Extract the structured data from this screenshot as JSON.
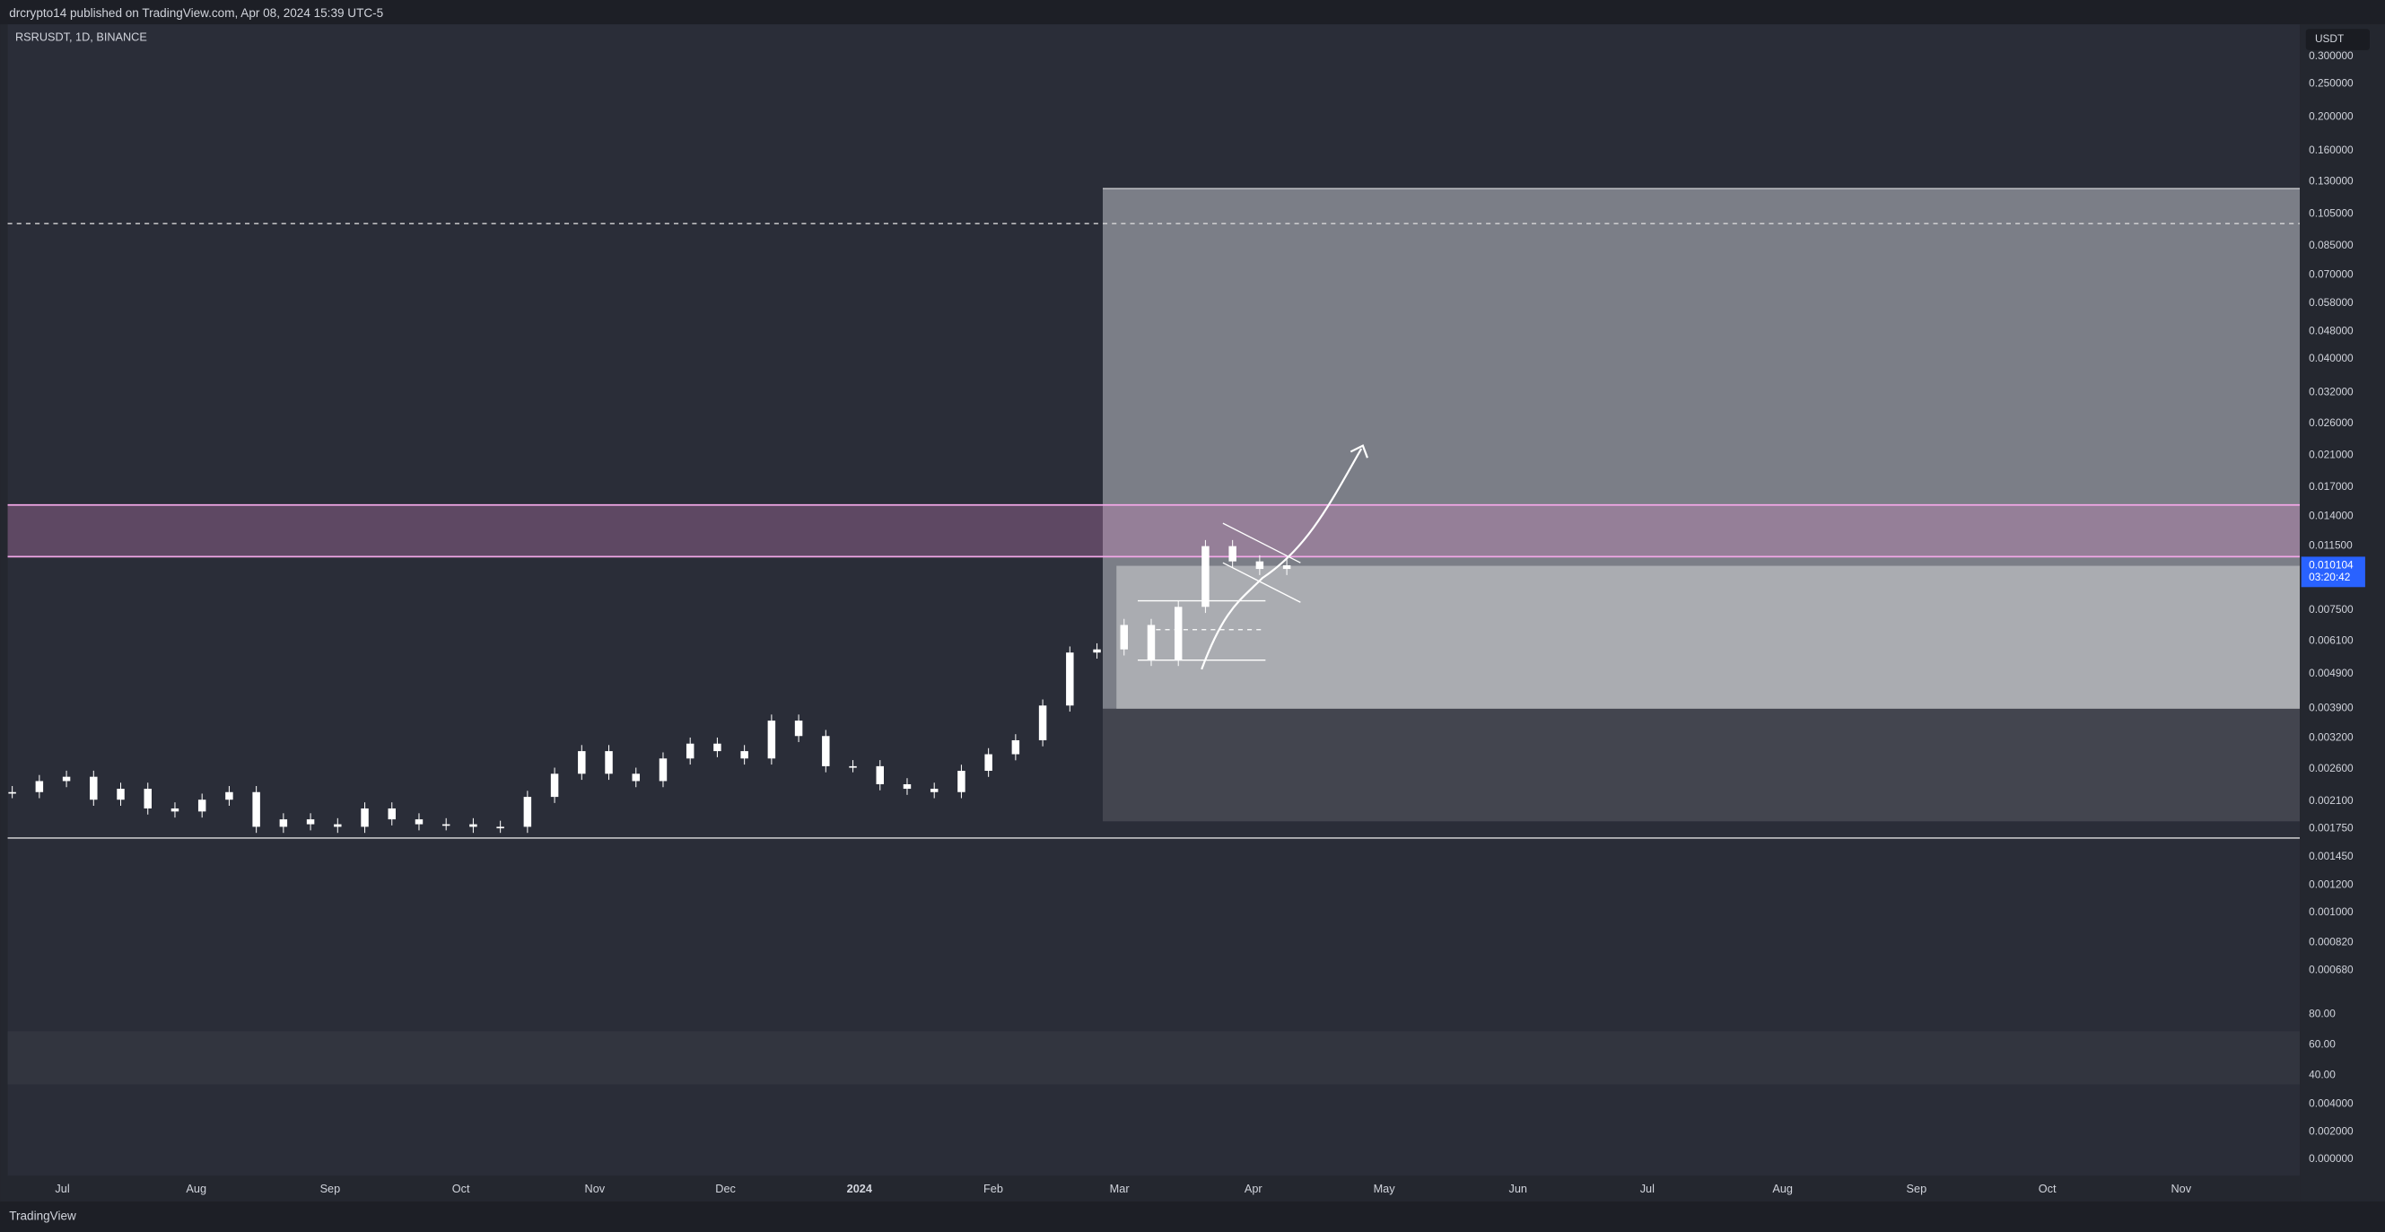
{
  "header": {
    "text": "drcrypto14 published on TradingView.com, Apr 08, 2024 15:39 UTC-5"
  },
  "chart": {
    "symbol": "RSRUSDT, 1D, BINANCE",
    "currency": "USDT",
    "price_scale": {
      "labels": [
        "0.300000",
        "0.250000",
        "0.200000",
        "0.160000",
        "0.130000",
        "0.105000",
        "0.085000",
        "0.070000",
        "0.058000",
        "0.048000",
        "0.040000",
        "0.032000",
        "0.026000",
        "0.021000",
        "0.017000",
        "0.014000",
        "0.011500",
        "0.007500",
        "0.006100",
        "0.004900",
        "0.003900",
        "0.003200",
        "0.002600",
        "0.002100",
        "0.001750",
        "0.001450",
        "0.001200",
        "0.001000",
        "0.000820",
        "0.000680"
      ]
    },
    "last_price": {
      "price": "0.010104",
      "countdown": "03:20:42"
    },
    "closes": [
      0.00223,
      0.0024,
      0.00247,
      0.00212,
      0.00228,
      0.002,
      0.00196,
      0.00212,
      0.00223,
      0.00177,
      0.00186,
      0.0018,
      0.00177,
      0.002,
      0.00186,
      0.0018,
      0.0018,
      0.00177,
      0.00177,
      0.00216,
      0.00252,
      0.00293,
      0.00252,
      0.0024,
      0.00279,
      0.00308,
      0.00293,
      0.00279,
      0.00359,
      0.00324,
      0.00265,
      0.00265,
      0.00235,
      0.00228,
      0.00223,
      0.00257,
      0.00287,
      0.00315,
      0.00397,
      0.00565,
      0.00577,
      0.00679,
      0.00538,
      0.00766,
      0.01148,
      0.01037,
      0.00986,
      0.010104
    ],
    "time_labels": [
      "Jul",
      "Aug",
      "Sep",
      "Oct",
      "Nov",
      "Dec",
      "2024",
      "Feb",
      "Mar",
      "Apr",
      "May",
      "Jun",
      "Jul",
      "Aug",
      "Sep",
      "Oct",
      "Nov"
    ],
    "rsi_scale": [
      "80.00",
      "60.00",
      "40.00"
    ],
    "macd_scale": [
      "0.004000",
      "0.002000",
      "0.000000"
    ]
  },
  "footer": {
    "brand": "TradingView"
  }
}
